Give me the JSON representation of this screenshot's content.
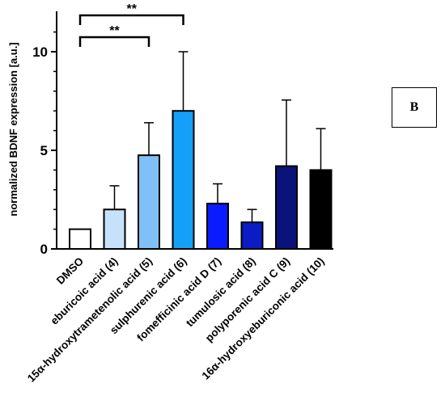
{
  "chart_data": {
    "type": "bar",
    "panel_label": "B",
    "ylabel": "normalized BDNF expression [a.u.]",
    "xlabel": "",
    "ylim": [
      0,
      12
    ],
    "yticks": [
      0,
      5,
      10
    ],
    "ytick_labels": [
      "0",
      "5",
      "10"
    ],
    "categories": [
      "DMSO",
      "eburicoic acid (4)",
      "15α-hydroxytrametenolic acid (5)",
      "sulphurenic acid (6)",
      "fomefficinic acid D (7)",
      "tumulosic acid (8)",
      "polyporenic acid C (9)",
      "16α-hydroxyeburiconic acid (10)"
    ],
    "values": [
      1.0,
      2.0,
      4.75,
      7.0,
      2.3,
      1.35,
      4.2,
      4.0
    ],
    "error_upper": [
      0.0,
      1.2,
      1.65,
      3.0,
      1.0,
      0.65,
      3.35,
      2.1
    ],
    "colors": [
      "#ffffff",
      "#c5e2fa",
      "#7fc0f8",
      "#15a0f8",
      "#0a1cff",
      "#0a1dc4",
      "#0a137a",
      "#000000"
    ],
    "significance": [
      {
        "from": 0,
        "to": 2,
        "label": "**"
      },
      {
        "from": 0,
        "to": 3,
        "label": "**"
      }
    ],
    "grid": false,
    "legend": "none"
  }
}
